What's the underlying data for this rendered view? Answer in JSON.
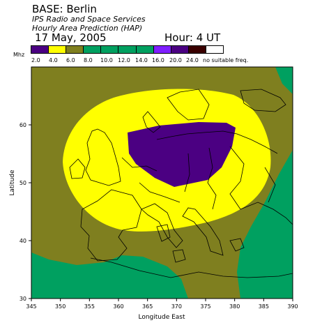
{
  "header": {
    "base": "BASE: Berlin",
    "organization": "IPS Radio and Space Services",
    "product": "Hourly Area Prediction (HAP)",
    "date": "17 May, 2005",
    "hour": "Hour:  4 UT"
  },
  "legend": {
    "unit": "Mhz",
    "colors": [
      "#4b0082",
      "#ffff00",
      "#7f7f1f",
      "#00a060",
      "#00a060",
      "#00a060",
      "#00a060",
      "#7f1fff",
      "#4b0082",
      "#3a0000",
      "#ffffff"
    ],
    "labels": [
      "2.0",
      "4.0",
      "6.0",
      "8.0",
      "10.0",
      "12.0",
      "14.0",
      "16.0",
      "20.0",
      "24.0",
      "no suitable freq."
    ]
  },
  "map": {
    "x_label": "Longitude East",
    "y_label": "Latitude",
    "x_ticks": [
      "345",
      "350",
      "355",
      "360",
      "365",
      "370",
      "375",
      "380",
      "385",
      "390"
    ],
    "y_ticks": [
      "30",
      "40",
      "50",
      "60"
    ],
    "xlim": [
      345,
      390
    ],
    "ylim": [
      30,
      70
    ],
    "region_colors": {
      "outer": "#7f7f1f",
      "mid": "#ffff00",
      "inner": "#4b0082",
      "edge": "#00a060"
    }
  }
}
